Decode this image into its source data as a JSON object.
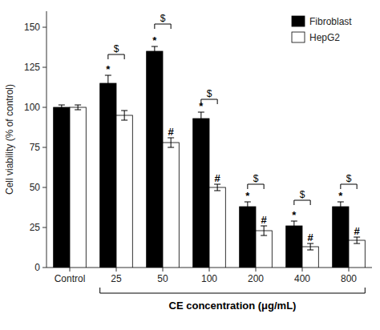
{
  "chart_data": {
    "type": "bar",
    "ylabel": "Cell viability (% of control)",
    "xlabel": "CE concentration (μg/mL)",
    "xlabel_bracket": {
      "from": "25",
      "to": "800"
    },
    "categories": [
      "Control",
      "25",
      "50",
      "100",
      "200",
      "400",
      "800"
    ],
    "series": [
      {
        "name": "Fibroblast",
        "color": "#000000",
        "values": [
          100,
          115,
          135,
          93,
          38,
          26,
          38
        ],
        "errors": [
          1.5,
          5,
          3,
          4,
          3,
          3,
          3
        ]
      },
      {
        "name": "HepG2",
        "color": "#ffffff",
        "values": [
          100,
          95,
          78,
          50,
          23,
          13,
          17
        ],
        "errors": [
          1.5,
          3,
          3,
          2,
          3,
          2,
          2
        ]
      }
    ],
    "ylim": [
      0,
      160
    ],
    "yticks": [
      0,
      25,
      50,
      75,
      100,
      125,
      150
    ],
    "grid": false,
    "legend": "upper right",
    "annotations": [
      {
        "text": "*",
        "series": "Fibroblast",
        "category": "25"
      },
      {
        "text": "*",
        "series": "Fibroblast",
        "category": "50"
      },
      {
        "text": "*",
        "series": "Fibroblast",
        "category": "100"
      },
      {
        "text": "*",
        "series": "Fibroblast",
        "category": "200"
      },
      {
        "text": "*",
        "series": "Fibroblast",
        "category": "400"
      },
      {
        "text": "*",
        "series": "Fibroblast",
        "category": "800"
      },
      {
        "text": "#",
        "series": "HepG2",
        "category": "50"
      },
      {
        "text": "#",
        "series": "HepG2",
        "category": "100"
      },
      {
        "text": "#",
        "series": "HepG2",
        "category": "200"
      },
      {
        "text": "#",
        "series": "HepG2",
        "category": "400"
      },
      {
        "text": "#",
        "series": "HepG2",
        "category": "800"
      }
    ],
    "brackets": [
      {
        "category": "25",
        "y": 133,
        "text": "$"
      },
      {
        "category": "50",
        "y": 152,
        "text": "$"
      },
      {
        "category": "100",
        "y": 105,
        "text": "$"
      },
      {
        "category": "200",
        "y": 52,
        "text": "$"
      },
      {
        "category": "400",
        "y": 42,
        "text": "$"
      },
      {
        "category": "800",
        "y": 52,
        "text": "$"
      }
    ]
  }
}
